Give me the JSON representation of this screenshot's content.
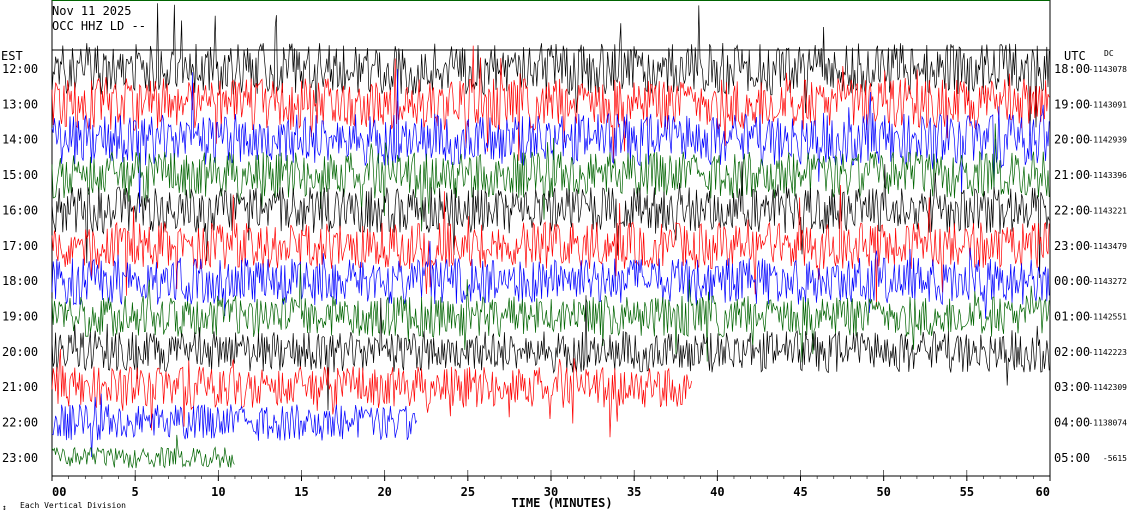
{
  "header": {
    "date": "Nov 11 2025",
    "station": "OCC HHZ LD --"
  },
  "left_label": "EST",
  "right_label": "UTC",
  "dc_label": "DC",
  "xlabel": "TIME (MINUTES)",
  "footer_note": "Each Vertical Division",
  "colors": {
    "black": "#000000",
    "red": "#ff0000",
    "blue": "#0000ff",
    "green": "#006400"
  },
  "chart_data": {
    "type": "line",
    "xlim": [
      0,
      60
    ],
    "x_ticks": [
      0,
      5,
      10,
      15,
      20,
      25,
      30,
      35,
      40,
      45,
      50,
      55,
      60
    ],
    "x_tick_labels": [
      "00",
      "5",
      "10",
      "15",
      "20",
      "25",
      "30",
      "35",
      "40",
      "45",
      "50",
      "55",
      "60"
    ],
    "color_cycle": [
      "black",
      "red",
      "blue",
      "green"
    ],
    "rows": [
      {
        "est": "12:00",
        "utc": "18:00",
        "dc": "-1143078",
        "end_minute": 60,
        "amplitude": 1.0
      },
      {
        "est": "13:00",
        "utc": "19:00",
        "dc": "-1143091",
        "end_minute": 60,
        "amplitude": 1.0
      },
      {
        "est": "14:00",
        "utc": "20:00",
        "dc": "-1142939",
        "end_minute": 60,
        "amplitude": 1.0
      },
      {
        "est": "15:00",
        "utc": "21:00",
        "dc": "-1143396",
        "end_minute": 60,
        "amplitude": 0.9
      },
      {
        "est": "16:00",
        "utc": "22:00",
        "dc": "-1143221",
        "end_minute": 60,
        "amplitude": 0.9
      },
      {
        "est": "17:00",
        "utc": "23:00",
        "dc": "-1143479",
        "end_minute": 60,
        "amplitude": 0.9
      },
      {
        "est": "18:00",
        "utc": "00:00",
        "dc": "-1143272",
        "end_minute": 60,
        "amplitude": 0.9
      },
      {
        "est": "19:00",
        "utc": "01:00",
        "dc": "-1142551",
        "end_minute": 60,
        "amplitude": 0.8
      },
      {
        "est": "20:00",
        "utc": "02:00",
        "dc": "-1142223",
        "end_minute": 60,
        "amplitude": 0.8
      },
      {
        "est": "21:00",
        "utc": "03:00",
        "dc": "-1142309",
        "end_minute": 38.5,
        "amplitude": 0.8
      },
      {
        "est": "22:00",
        "utc": "04:00",
        "dc": "-1138074",
        "end_minute": 22,
        "amplitude": 0.7
      },
      {
        "est": "23:00",
        "utc": "05:00",
        "dc": "-5615",
        "end_minute": 11,
        "amplitude": 0.4
      }
    ]
  }
}
